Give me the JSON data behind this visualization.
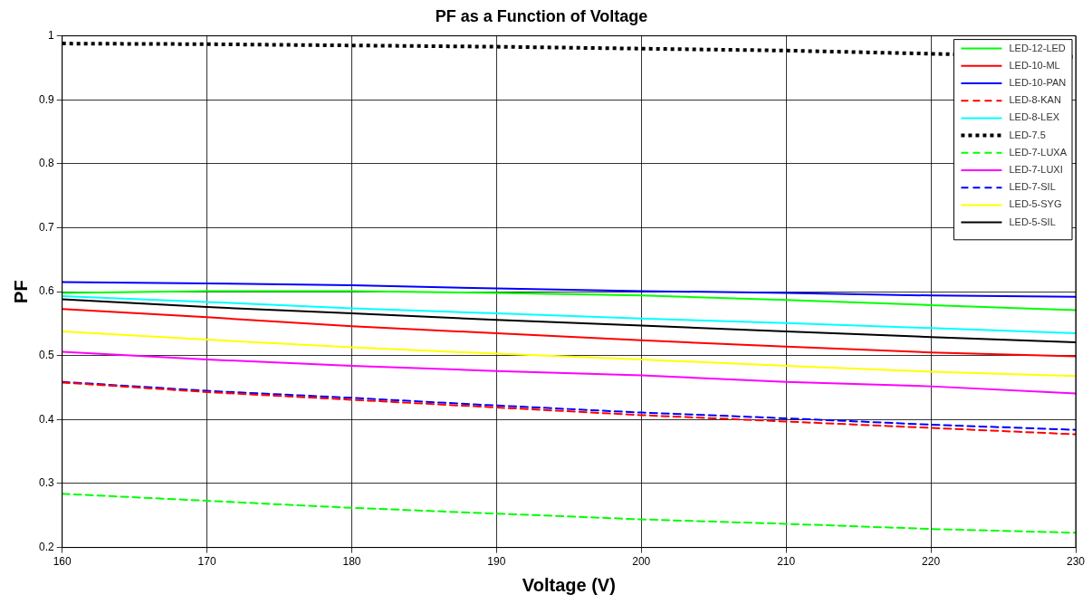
{
  "chart_data": {
    "type": "line",
    "title": "PF as a Function of Voltage",
    "xlabel": "Voltage (V)",
    "ylabel": "PF",
    "x": [
      160,
      170,
      180,
      190,
      200,
      210,
      220,
      230
    ],
    "xlim": [
      160,
      230
    ],
    "xticks": [
      160,
      170,
      180,
      190,
      200,
      210,
      220,
      230
    ],
    "ylim": [
      0.2,
      1
    ],
    "yticks": [
      0.2,
      0.3,
      0.4,
      0.5,
      0.6,
      0.7,
      0.8,
      0.9,
      1
    ],
    "grid": true,
    "legend": "top right",
    "marker": "none",
    "series": [
      {
        "name": "LED-12-LED",
        "color": "#00ff00",
        "line_style": "solid",
        "values": [
          0.598,
          0.601,
          0.601,
          0.598,
          0.594,
          0.587,
          0.579,
          0.571
        ]
      },
      {
        "name": "LED-10-ML",
        "color": "#ff0000",
        "line_style": "solid",
        "values": [
          0.573,
          0.56,
          0.546,
          0.535,
          0.524,
          0.514,
          0.505,
          0.499
        ]
      },
      {
        "name": "LED-10-PAN",
        "color": "#0000ff",
        "line_style": "solid",
        "values": [
          0.615,
          0.613,
          0.61,
          0.605,
          0.601,
          0.598,
          0.594,
          0.592
        ]
      },
      {
        "name": "LED-8-KAN",
        "color": "#ff0000",
        "line_style": "dashed",
        "values": [
          0.458,
          0.443,
          0.431,
          0.419,
          0.407,
          0.397,
          0.387,
          0.377
        ]
      },
      {
        "name": "LED-8-LEX",
        "color": "#00ffff",
        "line_style": "solid",
        "values": [
          0.593,
          0.584,
          0.574,
          0.566,
          0.558,
          0.551,
          0.543,
          0.535
        ]
      },
      {
        "name": "LED-7.5",
        "color": "#000000",
        "line_style": "dotted",
        "values": [
          0.988,
          0.987,
          0.985,
          0.983,
          0.98,
          0.977,
          0.972,
          0.967
        ]
      },
      {
        "name": "LED-7-LUXA",
        "color": "#00ff00",
        "line_style": "dashed",
        "values": [
          0.284,
          0.273,
          0.262,
          0.253,
          0.244,
          0.237,
          0.229,
          0.223
        ]
      },
      {
        "name": "LED-7-LUXI",
        "color": "#ff00ff",
        "line_style": "solid",
        "values": [
          0.506,
          0.494,
          0.484,
          0.476,
          0.469,
          0.459,
          0.452,
          0.441
        ]
      },
      {
        "name": "LED-7-SIL",
        "color": "#0000ff",
        "line_style": "dashed",
        "values": [
          0.459,
          0.445,
          0.434,
          0.422,
          0.411,
          0.402,
          0.392,
          0.384
        ]
      },
      {
        "name": "LED-5-SYG",
        "color": "#ffff00",
        "line_style": "solid",
        "values": [
          0.538,
          0.525,
          0.513,
          0.503,
          0.494,
          0.484,
          0.475,
          0.468
        ]
      },
      {
        "name": "LED-5-SIL",
        "color": "#000000",
        "line_style": "solid",
        "values": [
          0.588,
          0.576,
          0.566,
          0.556,
          0.547,
          0.538,
          0.529,
          0.521
        ]
      }
    ]
  }
}
